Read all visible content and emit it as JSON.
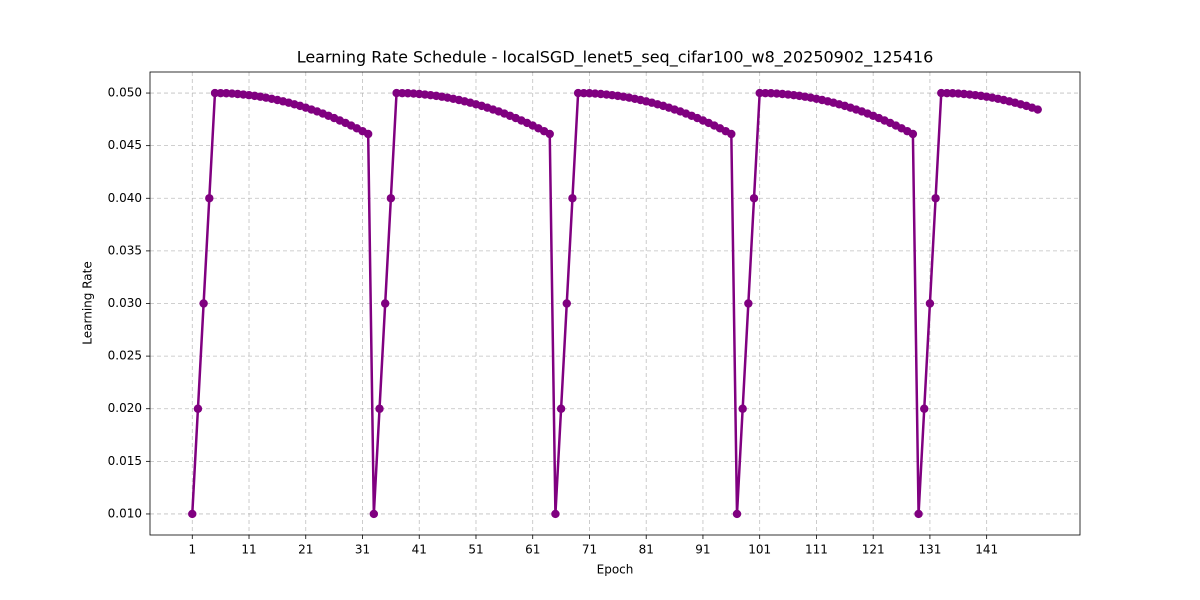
{
  "chart_data": {
    "type": "line",
    "title": "Learning Rate Schedule - localSGD_lenet5_seq_cifar100_w8_20250902_125416",
    "xlabel": "Epoch",
    "ylabel": "Learning Rate",
    "x": [
      1,
      2,
      3,
      4,
      5,
      6,
      7,
      8,
      9,
      10,
      11,
      12,
      13,
      14,
      15,
      16,
      17,
      18,
      19,
      20,
      21,
      22,
      23,
      24,
      25,
      26,
      27,
      28,
      29,
      30,
      31,
      32,
      33,
      34,
      35,
      36,
      37,
      38,
      39,
      40,
      41,
      42,
      43,
      44,
      45,
      46,
      47,
      48,
      49,
      50,
      51,
      52,
      53,
      54,
      55,
      56,
      57,
      58,
      59,
      60,
      61,
      62,
      63,
      64,
      65,
      66,
      67,
      68,
      69,
      70,
      71,
      72,
      73,
      74,
      75,
      76,
      77,
      78,
      79,
      80,
      81,
      82,
      83,
      84,
      85,
      86,
      87,
      88,
      89,
      90,
      91,
      92,
      93,
      94,
      95,
      96,
      97,
      98,
      99,
      100,
      101,
      102,
      103,
      104,
      105,
      106,
      107,
      108,
      109,
      110,
      111,
      112,
      113,
      114,
      115,
      116,
      117,
      118,
      119,
      120,
      121,
      122,
      123,
      124,
      125,
      126,
      127,
      128,
      129,
      130,
      131,
      132,
      133,
      134,
      135,
      136,
      137,
      138,
      139,
      140,
      141,
      142,
      143,
      144,
      145,
      146,
      147,
      148,
      149,
      150
    ],
    "values": [
      0.01,
      0.02,
      0.03,
      0.04,
      0.05,
      0.04999,
      0.04998,
      0.04995,
      0.04991,
      0.04986,
      0.0498,
      0.04973,
      0.04965,
      0.04956,
      0.04945,
      0.04934,
      0.04921,
      0.04908,
      0.04893,
      0.04878,
      0.04861,
      0.04843,
      0.04825,
      0.04805,
      0.04784,
      0.04762,
      0.04739,
      0.04716,
      0.04691,
      0.04665,
      0.04638,
      0.04611,
      0.01,
      0.02,
      0.03,
      0.04,
      0.05,
      0.04999,
      0.04998,
      0.04995,
      0.04991,
      0.04986,
      0.0498,
      0.04973,
      0.04965,
      0.04956,
      0.04945,
      0.04934,
      0.04921,
      0.04908,
      0.04893,
      0.04878,
      0.04861,
      0.04843,
      0.04825,
      0.04805,
      0.04784,
      0.04762,
      0.04739,
      0.04716,
      0.04691,
      0.04665,
      0.04638,
      0.04611,
      0.01,
      0.02,
      0.03,
      0.04,
      0.05,
      0.04999,
      0.04998,
      0.04995,
      0.04991,
      0.04986,
      0.0498,
      0.04973,
      0.04965,
      0.04956,
      0.04945,
      0.04934,
      0.04921,
      0.04908,
      0.04893,
      0.04878,
      0.04861,
      0.04843,
      0.04825,
      0.04805,
      0.04784,
      0.04762,
      0.04739,
      0.04716,
      0.04691,
      0.04665,
      0.04638,
      0.04611,
      0.01,
      0.02,
      0.03,
      0.04,
      0.05,
      0.04999,
      0.04998,
      0.04995,
      0.04991,
      0.04986,
      0.0498,
      0.04973,
      0.04965,
      0.04956,
      0.04945,
      0.04934,
      0.04921,
      0.04908,
      0.04893,
      0.04878,
      0.04861,
      0.04843,
      0.04825,
      0.04805,
      0.04784,
      0.04762,
      0.04739,
      0.04716,
      0.04691,
      0.04665,
      0.04638,
      0.04611,
      0.01,
      0.02,
      0.03,
      0.04,
      0.05,
      0.04999,
      0.04998,
      0.04995,
      0.04991,
      0.04986,
      0.0498,
      0.04973,
      0.04965,
      0.04956,
      0.04945,
      0.04934,
      0.04921,
      0.04908,
      0.04893,
      0.04878,
      0.04861,
      0.04843
    ],
    "color": "#800080",
    "xlim": [
      -6.45,
      157.45
    ],
    "xticks": [
      1,
      11,
      21,
      31,
      41,
      51,
      61,
      71,
      81,
      91,
      101,
      111,
      121,
      131,
      141
    ],
    "ylim": [
      0.008,
      0.052
    ],
    "yticks": [
      {
        "value": 0.01,
        "label": "0.010"
      },
      {
        "value": 0.015,
        "label": "0.015"
      },
      {
        "value": 0.02,
        "label": "0.020"
      },
      {
        "value": 0.025,
        "label": "0.025"
      },
      {
        "value": 0.03,
        "label": "0.030"
      },
      {
        "value": 0.035,
        "label": "0.035"
      },
      {
        "value": 0.04,
        "label": "0.040"
      },
      {
        "value": 0.045,
        "label": "0.045"
      },
      {
        "value": 0.05,
        "label": "0.050"
      }
    ],
    "grid": true
  }
}
